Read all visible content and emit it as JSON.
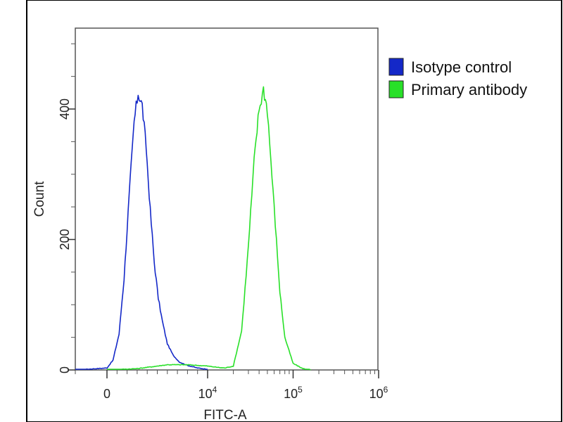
{
  "chart_data": {
    "type": "line",
    "title": "",
    "xlabel": "FITC-A",
    "ylabel": "Count",
    "x_scale": "biexponential",
    "x_ticks": [
      {
        "value": 0,
        "label": "0",
        "exp": ""
      },
      {
        "value": 10000,
        "label": "10",
        "exp": "4"
      },
      {
        "value": 100000,
        "label": "10",
        "exp": "5"
      },
      {
        "value": 1000000,
        "label": "10",
        "exp": "6"
      }
    ],
    "y_ticks": [
      {
        "value": 0,
        "label": "0"
      },
      {
        "value": 200,
        "label": "200"
      },
      {
        "value": 400,
        "label": "400"
      }
    ],
    "ylim": [
      0,
      520
    ],
    "grid": false,
    "legend_position": "right",
    "series": [
      {
        "name": "Isotype control",
        "color": "#1428c8",
        "x": [
          -1000,
          0,
          600,
          1200,
          1700,
          2200,
          2700,
          3100,
          3500,
          3900,
          4300,
          4700,
          5100,
          5500,
          6000,
          6600,
          7200,
          8000,
          9000,
          10000
        ],
        "y": [
          0,
          3,
          15,
          55,
          140,
          265,
          380,
          425,
          405,
          340,
          245,
          165,
          110,
          75,
          40,
          22,
          12,
          7,
          3,
          1
        ]
      },
      {
        "name": "Primary antibody",
        "color": "#28e028",
        "x": [
          0,
          3000,
          6000,
          8000,
          10000,
          13000,
          16000,
          20000,
          25000,
          30000,
          35000,
          40000,
          45000,
          50000,
          55000,
          60000,
          70000,
          80000,
          100000,
          130000,
          160000
        ],
        "y": [
          0,
          2,
          8,
          8,
          6,
          4,
          3,
          6,
          60,
          190,
          320,
          400,
          430,
          400,
          320,
          250,
          120,
          50,
          10,
          2,
          0
        ]
      }
    ]
  }
}
